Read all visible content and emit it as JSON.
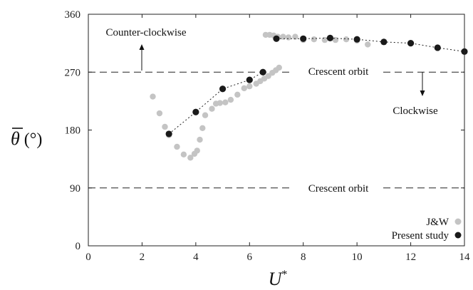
{
  "chart_data": {
    "type": "scatter",
    "xlabel_main": "U",
    "xlabel_sup": "*",
    "ylabel_main": "θ",
    "ylabel_unit": " (°)",
    "xlim": [
      0,
      14
    ],
    "ylim": [
      0,
      360
    ],
    "xticks": [
      "0",
      "2",
      "4",
      "6",
      "8",
      "10",
      "12",
      "14"
    ],
    "yticks": [
      "0",
      "90",
      "180",
      "270",
      "360"
    ],
    "grid": false,
    "legend_position": "bottom-right",
    "reference_lines": [
      {
        "y": 270,
        "label": "Crescent orbit"
      },
      {
        "y": 90,
        "label": "Crescent orbit"
      }
    ],
    "annotations": [
      {
        "text": "Counter-clockwise",
        "direction": "up"
      },
      {
        "text": "Clockwise",
        "direction": "down"
      }
    ],
    "series": [
      {
        "name": "J&W",
        "color": "#c4c4c4",
        "x": [
          2.4,
          2.65,
          2.85,
          3.0,
          3.3,
          3.55,
          3.8,
          3.95,
          4.05,
          4.15,
          4.25,
          4.35,
          4.6,
          4.75,
          4.9,
          5.1,
          5.3,
          5.55,
          5.8,
          6.0,
          6.25,
          6.4,
          6.55,
          6.7,
          6.85,
          6.98,
          7.1,
          6.6,
          6.75,
          6.9,
          7.05,
          7.25,
          7.45,
          7.7,
          8.0,
          8.4,
          8.8,
          9.2,
          9.6,
          10.0,
          10.4
        ],
        "y": [
          232,
          206,
          185,
          172,
          154,
          142,
          137,
          143,
          148,
          165,
          183,
          203,
          213,
          221,
          222,
          223,
          227,
          235,
          245,
          248,
          252,
          256,
          260,
          264,
          269,
          273,
          277,
          328,
          328,
          327,
          325,
          325,
          324,
          325,
          320,
          321,
          320,
          320,
          321,
          319,
          313
        ]
      },
      {
        "name": "Present study",
        "color": "#1a1a1a",
        "x": [
          3,
          4,
          5,
          6,
          6.5,
          7,
          8,
          9,
          10,
          11,
          12,
          13,
          14
        ],
        "y": [
          174,
          208,
          244,
          258,
          270,
          322,
          322,
          323,
          321,
          317,
          315,
          308,
          302
        ]
      }
    ]
  }
}
